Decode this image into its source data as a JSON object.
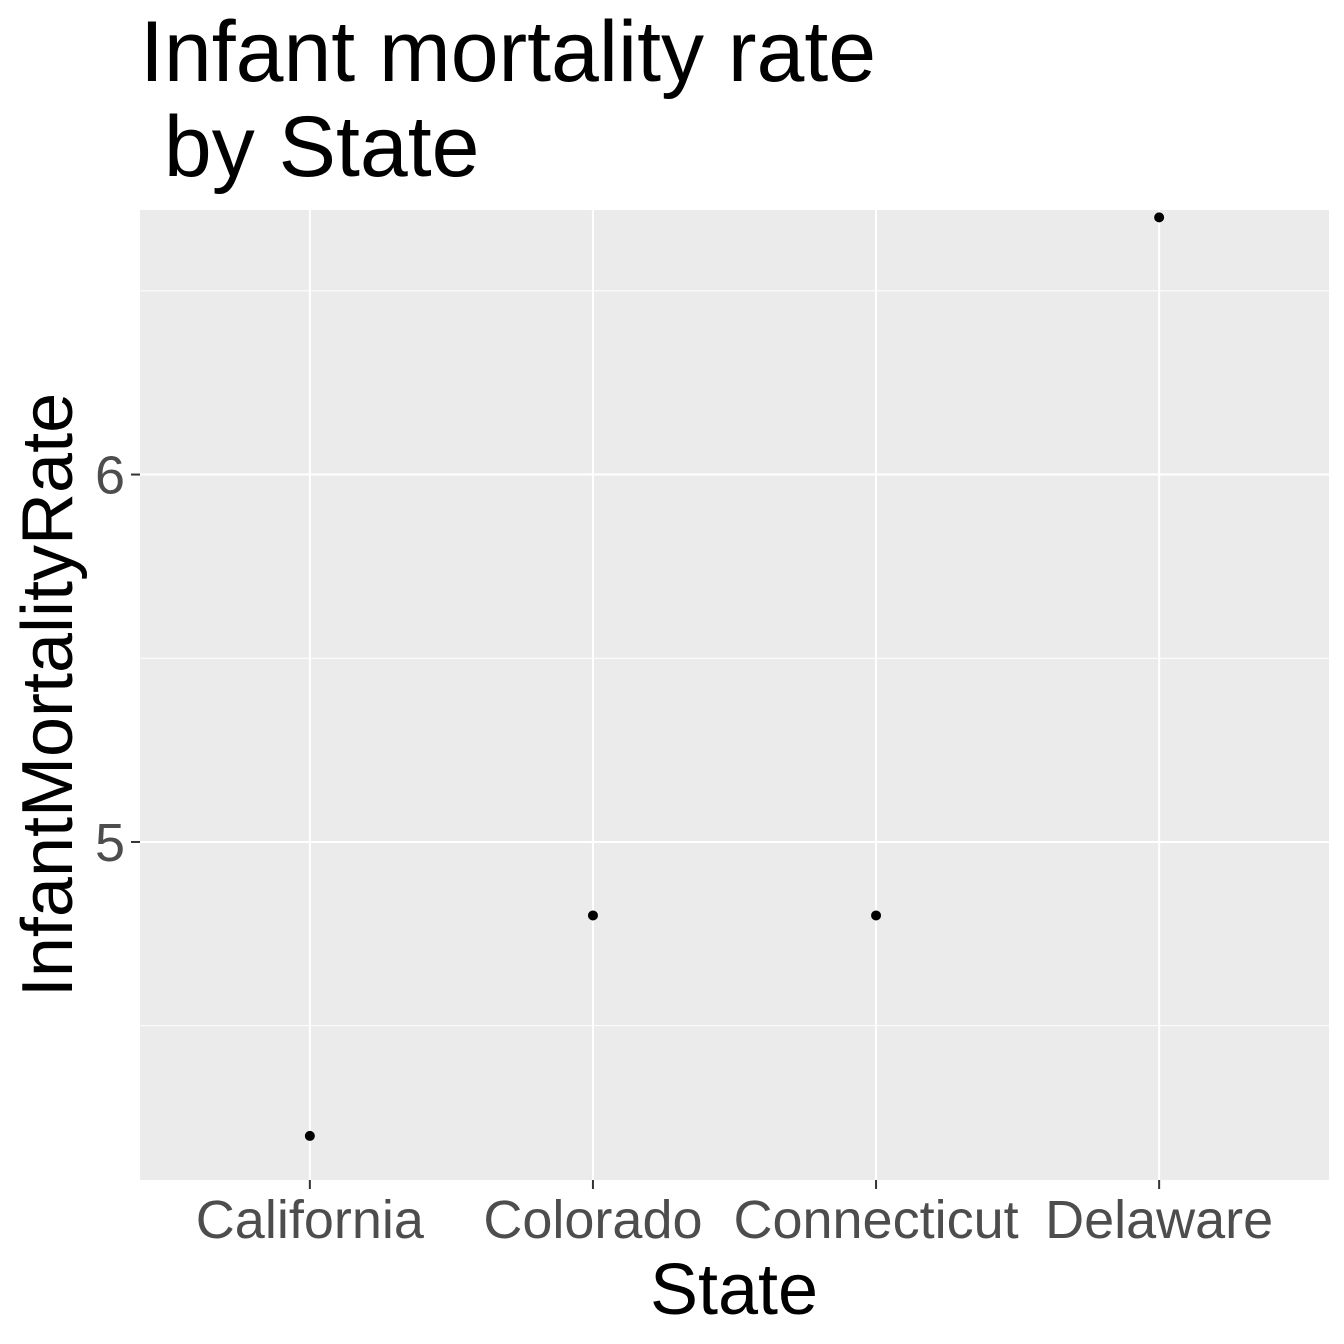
{
  "chart_data": {
    "type": "scatter",
    "title_lines": [
      "Infant mortality rate",
      " by State"
    ],
    "xlabel": "State",
    "ylabel": "InfantMortalityRate",
    "categories": [
      "California",
      "Colorado",
      "Connecticut",
      "Delaware"
    ],
    "values": [
      4.2,
      4.8,
      4.8,
      6.7
    ],
    "ylim": [
      4.08,
      6.72
    ],
    "y_ticks": [
      5,
      6
    ],
    "y_tick_labels": [
      "5",
      "6"
    ],
    "grid": true,
    "colors": {
      "panel_background": "#ebebeb",
      "grid": "#ffffff",
      "point": "#000000",
      "tick_text": "#4d4d4d",
      "tick_mark": "#333333"
    }
  }
}
